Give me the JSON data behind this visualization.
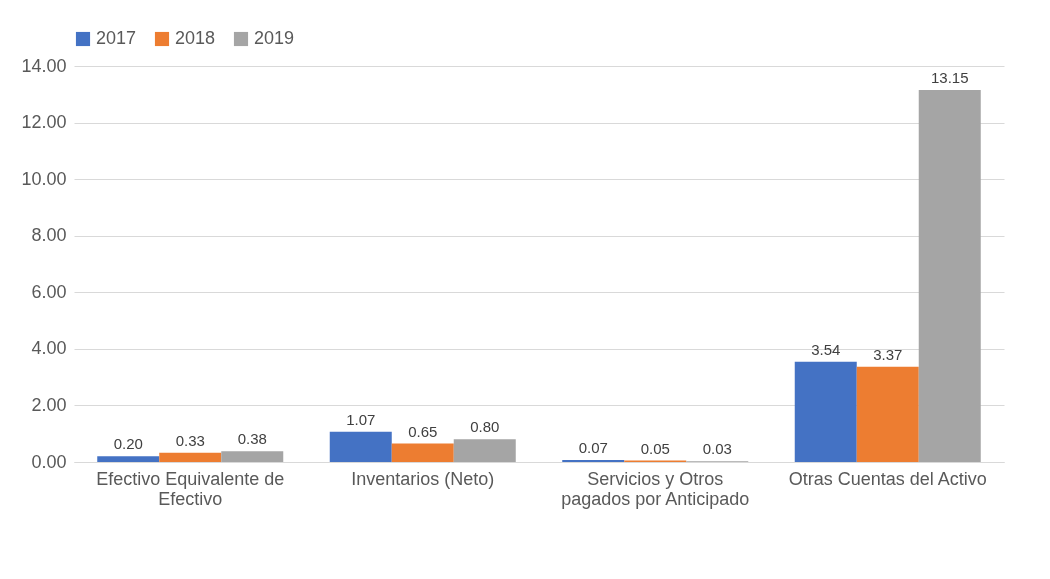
{
  "chart_data": {
    "type": "bar",
    "categories": [
      "Efectivo Equivalente de Efectivo",
      "Inventarios (Neto)",
      "Servicios y Otros pagados por Anticipado",
      "Otras Cuentas del Activo"
    ],
    "series": [
      {
        "name": "2017",
        "color": "#4472c4",
        "values": [
          0.2,
          1.07,
          0.07,
          3.54
        ],
        "value_labels": [
          "0.20",
          "1.07",
          "0.07",
          "3.54"
        ]
      },
      {
        "name": "2018",
        "color": "#ed7d31",
        "values": [
          0.33,
          0.65,
          0.05,
          3.37
        ],
        "value_labels": [
          "0.33",
          "0.65",
          "0.05",
          "3.37"
        ]
      },
      {
        "name": "2019",
        "color": "#a5a5a5",
        "values": [
          0.38,
          0.8,
          0.03,
          13.15
        ],
        "value_labels": [
          "0.38",
          "0.80",
          "0.03",
          "13.15"
        ]
      }
    ],
    "ylim": [
      0,
      14
    ],
    "yticks": [
      {
        "value": 0,
        "label": "0.00"
      },
      {
        "value": 2,
        "label": "2.00"
      },
      {
        "value": 4,
        "label": "4.00"
      },
      {
        "value": 6,
        "label": "6.00"
      },
      {
        "value": 8,
        "label": "8.00"
      },
      {
        "value": 10,
        "label": "10.00"
      },
      {
        "value": 12,
        "label": "12.00"
      },
      {
        "value": 14,
        "label": "14.00"
      }
    ],
    "grid": "y",
    "legend": "top"
  }
}
